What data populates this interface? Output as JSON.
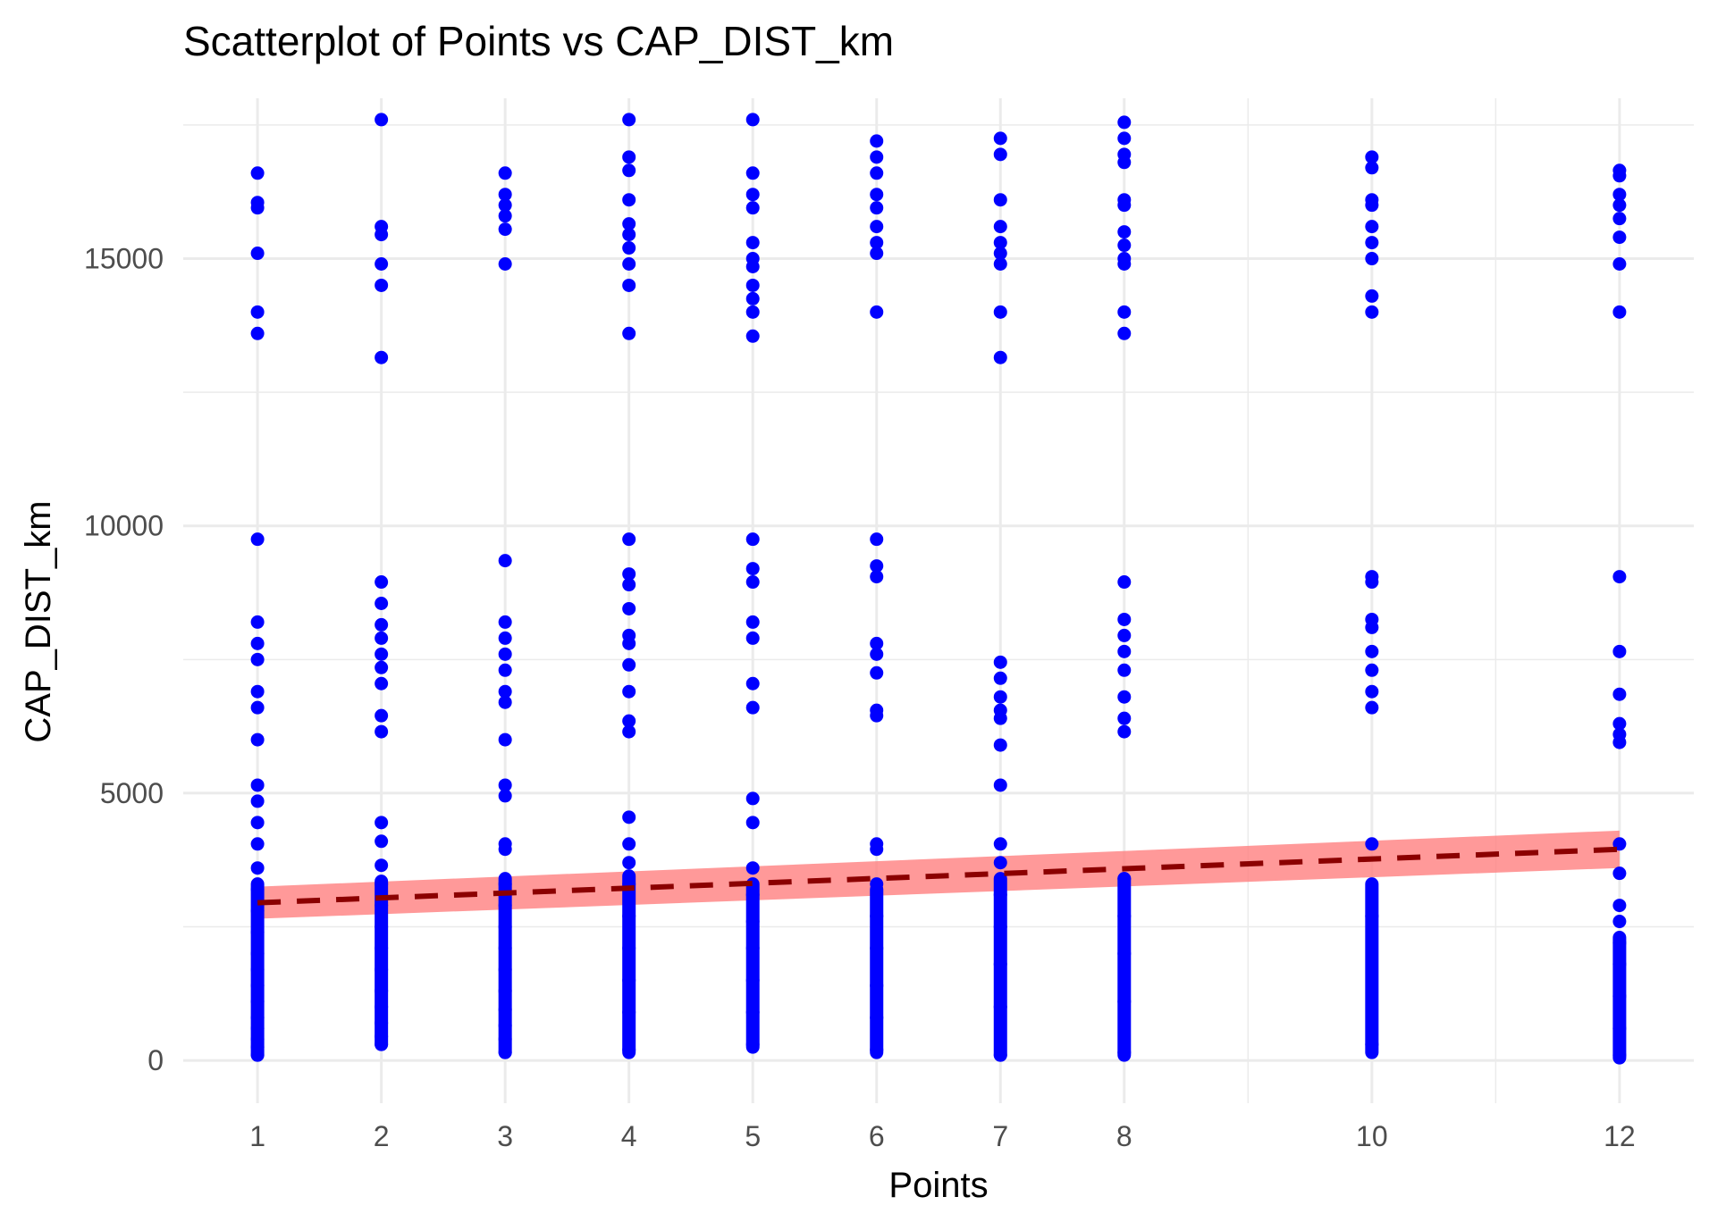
{
  "chart_data": {
    "type": "scatter",
    "title": "Scatterplot of Points vs  CAP_DIST_km",
    "xlabel": "Points",
    "ylabel": "CAP_DIST_km",
    "xlim": [
      0.4,
      12.6
    ],
    "ylim": [
      -800,
      18000
    ],
    "x_ticks": [
      1,
      2,
      3,
      4,
      5,
      6,
      7,
      8,
      10,
      12
    ],
    "x_tick_labels": [
      "1",
      "2",
      "3",
      "4",
      "5",
      "6",
      "7",
      "8",
      "10",
      "12"
    ],
    "x_minor_grid": [
      9,
      11
    ],
    "y_ticks": [
      0,
      5000,
      10000,
      15000
    ],
    "y_tick_labels": [
      "0",
      "5000",
      "10000",
      "15000"
    ],
    "y_minor_grid": [
      2500,
      7500,
      12500,
      17500
    ],
    "grid": true,
    "legend": "none",
    "point_color": "#0000ff",
    "series": [
      {
        "type": "scatter",
        "x": [
          1,
          1,
          1,
          1,
          1,
          1,
          1,
          1,
          1,
          1,
          1,
          1,
          1,
          1,
          1,
          1,
          1,
          1,
          1,
          1,
          1,
          1,
          1,
          1,
          1,
          1,
          1,
          1,
          1,
          1,
          2,
          2,
          2,
          2,
          2,
          2,
          2,
          2,
          2,
          2,
          2,
          2,
          2,
          2,
          2,
          2,
          2,
          2,
          2,
          2,
          2,
          2,
          2,
          2,
          2,
          2,
          2,
          2,
          3,
          3,
          3,
          3,
          3,
          3,
          3,
          3,
          3,
          3,
          3,
          3,
          3,
          3,
          3,
          3,
          3,
          3,
          3,
          3,
          3,
          3,
          3,
          3,
          3,
          3,
          3,
          3,
          4,
          4,
          4,
          4,
          4,
          4,
          4,
          4,
          4,
          4,
          4,
          4,
          4,
          4,
          4,
          4,
          4,
          4,
          4,
          4,
          4,
          4,
          4,
          4,
          4,
          4,
          4,
          4,
          4,
          5,
          5,
          5,
          5,
          5,
          5,
          5,
          5,
          5,
          5,
          5,
          5,
          5,
          5,
          5,
          5,
          5,
          5,
          5,
          5,
          5,
          5,
          5,
          5,
          5,
          5,
          5,
          6,
          6,
          6,
          6,
          6,
          6,
          6,
          6,
          6,
          6,
          6,
          6,
          6,
          6,
          6,
          6,
          6,
          6,
          6,
          6,
          6,
          6,
          6,
          6,
          6,
          7,
          7,
          7,
          7,
          7,
          7,
          7,
          7,
          7,
          7,
          7,
          7,
          7,
          7,
          7,
          7,
          7,
          7,
          7,
          7,
          7,
          7,
          7,
          8,
          8,
          8,
          8,
          8,
          8,
          8,
          8,
          8,
          8,
          8,
          8,
          8,
          8,
          8,
          8,
          8,
          8,
          8,
          8,
          8,
          8,
          8,
          8,
          8,
          10,
          10,
          10,
          10,
          10,
          10,
          10,
          10,
          10,
          10,
          10,
          10,
          10,
          10,
          10,
          10,
          10,
          10,
          10,
          10,
          12,
          12,
          12,
          12,
          12,
          12,
          12,
          12,
          12,
          12,
          12,
          12,
          12,
          12,
          12,
          12,
          12,
          12,
          12,
          12,
          12,
          12,
          12
        ],
        "y": [
          16600,
          16050,
          15950,
          15100,
          14000,
          13600,
          9750,
          8200,
          7800,
          7500,
          6900,
          6600,
          6000,
          5150,
          4850,
          4450,
          4050,
          3600,
          3200,
          2800,
          2400,
          2000,
          1700,
          1400,
          1100,
          800,
          600,
          400,
          250,
          100,
          17600,
          15600,
          15450,
          14900,
          14500,
          13150,
          8950,
          8550,
          8150,
          7900,
          7600,
          7350,
          7050,
          6450,
          6150,
          4450,
          4100,
          3650,
          3300,
          2900,
          2500,
          2100,
          1700,
          1300,
          1000,
          700,
          450,
          300,
          16600,
          16200,
          16000,
          15800,
          15550,
          14900,
          9350,
          8200,
          7900,
          7600,
          7300,
          6900,
          6700,
          6000,
          5150,
          4950,
          4050,
          3950,
          3300,
          2900,
          2500,
          2100,
          1700,
          1300,
          950,
          650,
          400,
          150,
          17600,
          16900,
          16650,
          16100,
          15650,
          15450,
          15200,
          14900,
          14500,
          13600,
          9750,
          9100,
          8900,
          8450,
          7950,
          7800,
          7400,
          6900,
          6350,
          6150,
          4550,
          4050,
          3700,
          3300,
          2700,
          2100,
          1500,
          900,
          200,
          17600,
          16600,
          16200,
          15950,
          15300,
          15000,
          14850,
          14500,
          14250,
          14000,
          13550,
          9750,
          9200,
          8950,
          8200,
          7900,
          7050,
          6600,
          4900,
          4450,
          3600,
          3100,
          2600,
          2100,
          1500,
          900,
          300,
          17200,
          16900,
          16600,
          16200,
          15950,
          15600,
          15300,
          15100,
          14000,
          9750,
          9250,
          9050,
          7800,
          7600,
          7250,
          6550,
          6450,
          4050,
          3950,
          3300,
          2700,
          2100,
          1400,
          800,
          200,
          17250,
          16950,
          16100,
          15600,
          15300,
          15100,
          14900,
          14000,
          13150,
          7450,
          7150,
          6800,
          6550,
          6400,
          5900,
          5150,
          4050,
          3700,
          3100,
          2500,
          1800,
          1000,
          100,
          17550,
          17250,
          16950,
          16800,
          16100,
          16000,
          15500,
          15250,
          15000,
          14900,
          14000,
          13600,
          8950,
          8250,
          7950,
          7650,
          7300,
          6800,
          6400,
          6150,
          3400,
          2700,
          2000,
          1100,
          150,
          16900,
          16700,
          16100,
          16000,
          15600,
          15300,
          15000,
          14300,
          14000,
          9050,
          8950,
          8250,
          8100,
          7650,
          7300,
          6900,
          6600,
          4050,
          2700,
          300,
          16650,
          16550,
          16200,
          16000,
          15750,
          15400,
          14900,
          14000,
          9050,
          7650,
          6850,
          6300,
          6100,
          5950,
          4050,
          3500,
          2900,
          2600,
          2200,
          1800,
          1200,
          600,
          100
        ]
      },
      {
        "type": "linear-fit",
        "line_color": "#8b0000",
        "ribbon_color": "#ff8080",
        "x": [
          1,
          12
        ],
        "y": [
          2950,
          3950
        ],
        "ribbon_lower": [
          2650,
          3600
        ],
        "ribbon_upper": [
          3250,
          4300
        ]
      }
    ],
    "column_bands": [
      {
        "x": 1,
        "from": 100,
        "to": 3300
      },
      {
        "x": 2,
        "from": 300,
        "to": 3350
      },
      {
        "x": 3,
        "from": 150,
        "to": 3400
      },
      {
        "x": 4,
        "from": 150,
        "to": 3450
      },
      {
        "x": 5,
        "from": 250,
        "to": 3300
      },
      {
        "x": 6,
        "from": 150,
        "to": 3200
      },
      {
        "x": 7,
        "from": 100,
        "to": 3400
      },
      {
        "x": 8,
        "from": 100,
        "to": 3400
      },
      {
        "x": 10,
        "from": 150,
        "to": 3300
      },
      {
        "x": 12,
        "from": 50,
        "to": 2300
      }
    ]
  }
}
